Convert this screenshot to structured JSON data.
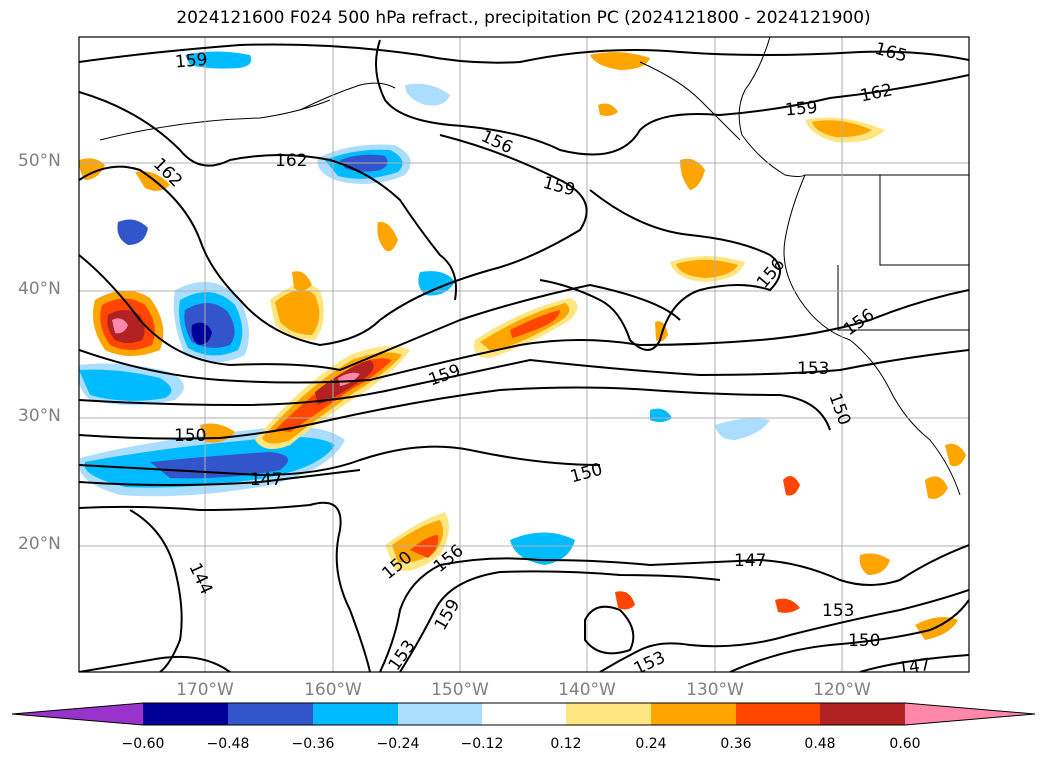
{
  "title": "2024121600 F024 500 hPa refract., precipitation PC (2024121800 - 2024121900)",
  "lat_labels": [
    "50°N",
    "40°N",
    "30°N",
    "20°N"
  ],
  "lon_labels": [
    "170°W",
    "160°W",
    "150°W",
    "140°W",
    "130°W",
    "120°W"
  ],
  "colorbar": {
    "ticks": [
      "−0.60",
      "−0.48",
      "−0.36",
      "−0.24",
      "−0.12",
      "0.12",
      "0.24",
      "0.36",
      "0.48",
      "0.60"
    ],
    "colors": [
      "#9933cc",
      "#000099",
      "#3355cc",
      "#00bbff",
      "#aaddff",
      "#ffffff",
      "#ffe680",
      "#ffa500",
      "#ff4500",
      "#b22222",
      "#ff88aa"
    ]
  },
  "contour_labels": [
    "159",
    "165",
    "162",
    "159",
    "162",
    "156",
    "159",
    "162",
    "156",
    "156",
    "159",
    "153",
    "150",
    "150",
    "147",
    "150",
    "147",
    "144",
    "150",
    "156",
    "159",
    "153",
    "153",
    "153",
    "150",
    "147"
  ]
}
